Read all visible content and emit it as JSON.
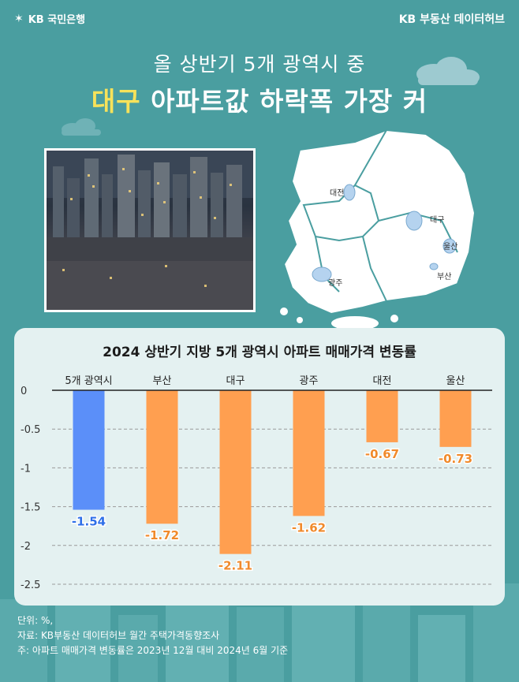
{
  "header": {
    "brand_left": "KB 국민은행",
    "brand_right": "KB 부동산  데이터허브"
  },
  "headline": {
    "line1": "올 상반기 5개 광역시 중",
    "line2_highlight": "대구",
    "line2_rest": " 아파트값 하락폭 가장 커"
  },
  "map": {
    "labels": [
      "대전",
      "대구",
      "울산",
      "부산",
      "광주"
    ]
  },
  "chart_data": {
    "type": "bar",
    "title": "2024 상반기 지방 5개 광역시 아파트 매매가격 변동률",
    "categories": [
      "5개 광역시",
      "부산",
      "대구",
      "광주",
      "대전",
      "울산"
    ],
    "values": [
      -1.54,
      -1.72,
      -2.11,
      -1.62,
      -0.67,
      -0.73
    ],
    "value_labels": [
      "-1.54",
      "-1.72",
      "-2.11",
      "-1.62",
      "-0.67",
      "-0.73"
    ],
    "ylim": [
      -2.5,
      0
    ],
    "yticks": [
      0,
      -0.5,
      -1,
      -1.5,
      -2,
      -2.5
    ],
    "ytick_labels": [
      "0",
      "-0.5",
      "-1",
      "-1.5",
      "-2",
      "-2.5"
    ],
    "grid": true,
    "colors": [
      "#5b8ff9",
      "#ff9f50",
      "#ff9f50",
      "#ff9f50",
      "#ff9f50",
      "#ff9f50"
    ],
    "label_colors": [
      "#2f6fe8",
      "#f08a2c",
      "#f08a2c",
      "#f08a2c",
      "#f08a2c",
      "#f08a2c"
    ]
  },
  "footer": {
    "unit": "단위: %,",
    "source": "자료: KB부동산 데이터허브 월간 주택가격동향조사",
    "note": "주: 아파트 매매가격 변동률은 2023년 12월 대비 2024년 6월 기준"
  },
  "colors": {
    "background": "#4a9ea0",
    "highlight": "#f7e25a",
    "card": "#e4f1f1"
  }
}
